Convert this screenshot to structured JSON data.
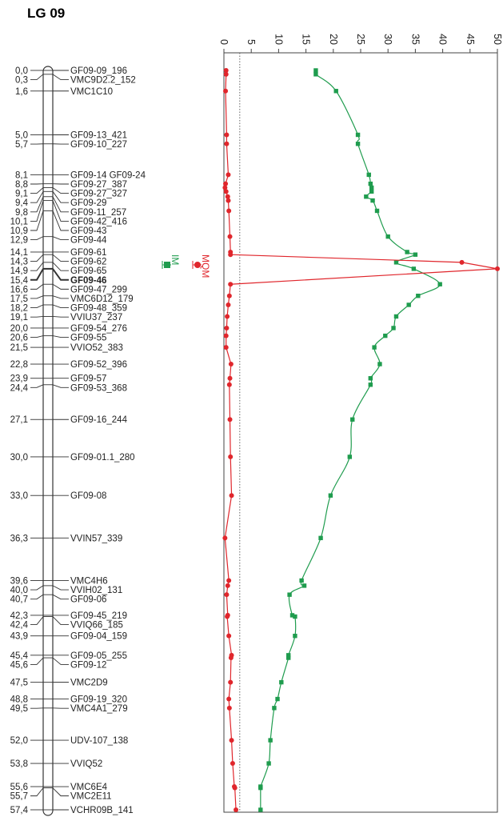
{
  "title": "LG 09",
  "markers": [
    {
      "pos": "0,0",
      "name": "GF09-09_196"
    },
    {
      "pos": "0,3",
      "name": "VMC9D2.2_152"
    },
    {
      "pos": "1,6",
      "name": "VMC1C10"
    },
    {
      "pos": "5,0",
      "name": "GF09-13_421"
    },
    {
      "pos": "5,7",
      "name": "GF09-10_227"
    },
    {
      "pos": "8,1",
      "name": "GF09-14 GF09-24"
    },
    {
      "pos": "8,8",
      "name": "GF09-27_387"
    },
    {
      "pos": "9,1",
      "name": "GF09-27_327"
    },
    {
      "pos": "9,4",
      "name": "GF09-29"
    },
    {
      "pos": "9,8",
      "name": "GF09-11_257"
    },
    {
      "pos": "10,1",
      "name": "GF09-42_416"
    },
    {
      "pos": "10,9",
      "name": "GF09-43"
    },
    {
      "pos": "12,9",
      "name": "GF09-44"
    },
    {
      "pos": "14,1",
      "name": "GF09-61"
    },
    {
      "pos": "14,3",
      "name": "GF09-62"
    },
    {
      "pos": "14,9",
      "name": "GF09-65"
    },
    {
      "pos": "15,4",
      "name": "GF09-46",
      "bold": true
    },
    {
      "pos": "16,6",
      "name": "GF09-47_299"
    },
    {
      "pos": "17,5",
      "name": "VMC6D12_179"
    },
    {
      "pos": "18,2",
      "name": "GF09-48_359"
    },
    {
      "pos": "19,1",
      "name": "VVIU37_237"
    },
    {
      "pos": "20,0",
      "name": "GF09-54_276"
    },
    {
      "pos": "20,6",
      "name": "GF09-55"
    },
    {
      "pos": "21,5",
      "name": "VVIO52_383"
    },
    {
      "pos": "22,8",
      "name": "GF09-52_396"
    },
    {
      "pos": "23,9",
      "name": "GF09-57"
    },
    {
      "pos": "24,4",
      "name": "GF09-53_368"
    },
    {
      "pos": "27,1",
      "name": "GF09-16_244"
    },
    {
      "pos": "30,0",
      "name": "GF09-01.1_280"
    },
    {
      "pos": "33,0",
      "name": "GF09-08"
    },
    {
      "pos": "36,3",
      "name": "VVIN57_339"
    },
    {
      "pos": "39,6",
      "name": "VMC4H6"
    },
    {
      "pos": "40,0",
      "name": "VVIH02_131"
    },
    {
      "pos": "40,7",
      "name": "GF09-06"
    },
    {
      "pos": "42,3",
      "name": "GF09-45_219"
    },
    {
      "pos": "42,4",
      "name": "VVIQ66_185"
    },
    {
      "pos": "43,9",
      "name": "GF09-04_159"
    },
    {
      "pos": "45,4",
      "name": "GF09-05_255"
    },
    {
      "pos": "45,6",
      "name": "GF09-12"
    },
    {
      "pos": "47,5",
      "name": "VMC2D9"
    },
    {
      "pos": "48,8",
      "name": "GF09-19_320"
    },
    {
      "pos": "49,5",
      "name": "VMC4A1_279"
    },
    {
      "pos": "52,0",
      "name": "UDV-107_138"
    },
    {
      "pos": "53,8",
      "name": "VVIQ52"
    },
    {
      "pos": "55,6",
      "name": "VMC6E4"
    },
    {
      "pos": "55,7",
      "name": "VMC2E11"
    },
    {
      "pos": "57,4",
      "name": "VCHR09B_141"
    }
  ],
  "legend": [
    {
      "label": "MQM",
      "color": "#e0262c"
    },
    {
      "label": "IM",
      "color": "#1f9c4e"
    }
  ],
  "chart_data": {
    "type": "line",
    "orientation": "vertical-position",
    "lod_axis": {
      "ticks": [
        0,
        5,
        10,
        15,
        20,
        25,
        30,
        35,
        40,
        45,
        50
      ],
      "range": [
        0,
        50
      ],
      "position": "top"
    },
    "position_range_cM": [
      0,
      57.4
    ],
    "threshold_lod": 2.9,
    "series": [
      {
        "name": "IM",
        "color": "#1f9c4e",
        "marker": "square",
        "points": [
          [
            0.0,
            16.8
          ],
          [
            0.3,
            16.8
          ],
          [
            1.6,
            20.5
          ],
          [
            5.0,
            24.5
          ],
          [
            5.7,
            24.5
          ],
          [
            8.1,
            26.5
          ],
          [
            8.8,
            26.8
          ],
          [
            9.1,
            27.0
          ],
          [
            9.4,
            27.0
          ],
          [
            9.8,
            26.0
          ],
          [
            10.1,
            27.2
          ],
          [
            10.9,
            28.0
          ],
          [
            12.9,
            30.0
          ],
          [
            14.1,
            33.5
          ],
          [
            14.3,
            35.0
          ],
          [
            14.9,
            31.5
          ],
          [
            15.4,
            34.7
          ],
          [
            16.6,
            39.5
          ],
          [
            17.5,
            35.5
          ],
          [
            18.2,
            33.8
          ],
          [
            19.1,
            31.5
          ],
          [
            20.0,
            31.0
          ],
          [
            20.6,
            29.5
          ],
          [
            21.5,
            27.5
          ],
          [
            22.8,
            28.5
          ],
          [
            23.9,
            26.8
          ],
          [
            24.4,
            26.8
          ],
          [
            27.1,
            23.5
          ],
          [
            30.0,
            23.0
          ],
          [
            33.0,
            19.5
          ],
          [
            36.3,
            17.7
          ],
          [
            39.6,
            14.2
          ],
          [
            40.0,
            14.7
          ],
          [
            40.7,
            12.0
          ],
          [
            42.3,
            12.5
          ],
          [
            42.4,
            13.0
          ],
          [
            43.9,
            13.0
          ],
          [
            45.4,
            11.8
          ],
          [
            45.6,
            11.8
          ],
          [
            47.5,
            10.5
          ],
          [
            48.8,
            9.8
          ],
          [
            49.5,
            9.2
          ],
          [
            52.0,
            8.5
          ],
          [
            53.8,
            8.2
          ],
          [
            55.6,
            6.7
          ],
          [
            55.7,
            6.7
          ],
          [
            57.4,
            6.7
          ]
        ]
      },
      {
        "name": "MQM",
        "color": "#e0262c",
        "marker": "circle",
        "points": [
          [
            0.0,
            0.4
          ],
          [
            0.3,
            0.4
          ],
          [
            1.6,
            0.3
          ],
          [
            5.0,
            0.5
          ],
          [
            5.7,
            0.5
          ],
          [
            8.1,
            0.8
          ],
          [
            8.8,
            0.3
          ],
          [
            9.1,
            0.2
          ],
          [
            9.4,
            0.4
          ],
          [
            9.8,
            0.7
          ],
          [
            10.1,
            0.8
          ],
          [
            10.9,
            0.9
          ],
          [
            12.9,
            1.1
          ],
          [
            14.1,
            1.2
          ],
          [
            14.3,
            1.2
          ],
          [
            14.9,
            43.5
          ],
          [
            15.4,
            50.0
          ],
          [
            16.6,
            1.2
          ],
          [
            17.5,
            1.0
          ],
          [
            18.2,
            0.8
          ],
          [
            19.1,
            0.6
          ],
          [
            20.0,
            0.5
          ],
          [
            20.6,
            0.4
          ],
          [
            21.5,
            0.4
          ],
          [
            22.8,
            1.3
          ],
          [
            23.9,
            1.1
          ],
          [
            24.4,
            1.0
          ],
          [
            27.1,
            1.1
          ],
          [
            30.0,
            1.2
          ],
          [
            33.0,
            1.4
          ],
          [
            36.3,
            0.2
          ],
          [
            39.6,
            0.9
          ],
          [
            40.0,
            0.7
          ],
          [
            40.7,
            0.5
          ],
          [
            42.3,
            0.7
          ],
          [
            42.4,
            0.6
          ],
          [
            43.9,
            0.9
          ],
          [
            45.4,
            1.4
          ],
          [
            45.6,
            1.3
          ],
          [
            47.5,
            1.2
          ],
          [
            48.8,
            0.9
          ],
          [
            49.5,
            1.0
          ],
          [
            52.0,
            1.4
          ],
          [
            53.8,
            1.6
          ],
          [
            55.6,
            1.9
          ],
          [
            55.7,
            2.0
          ],
          [
            57.4,
            2.2
          ]
        ]
      }
    ],
    "title": "LG 09",
    "xlabel": "",
    "ylabel": ""
  }
}
